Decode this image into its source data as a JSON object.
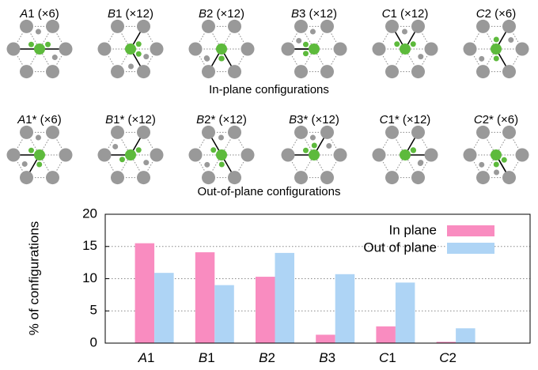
{
  "diagrams": {
    "in_plane": {
      "labels": [
        "A1 (×6)",
        "B1 (×12)",
        "B2 (×12)",
        "B3 (×12)",
        "C1 (×12)",
        "C2 (×6)"
      ],
      "caption": "In-plane configurations"
    },
    "out_of_plane": {
      "labels": [
        "A1* (×6)",
        "B1* (×12)",
        "B2* (×12)",
        "B3* (×12)",
        "C1* (×12)",
        "C2* (×6)"
      ],
      "caption": "Out-of-plane configurations"
    }
  },
  "chart_data": {
    "type": "bar",
    "y_label": "% of configurations",
    "categories": [
      "A1",
      "B1",
      "B2",
      "B3",
      "C1",
      "C2"
    ],
    "series": [
      {
        "name": "In plane",
        "color": "#f98cc0",
        "values": [
          15.5,
          14.1,
          10.3,
          1.3,
          2.6,
          0.2
        ]
      },
      {
        "name": "Out of plane",
        "color": "#aed4f5",
        "values": [
          10.9,
          9.0,
          14.0,
          10.7,
          9.4,
          2.3
        ]
      }
    ],
    "ylim": [
      0,
      20
    ],
    "yticks": [
      0,
      5,
      10,
      15,
      20
    ],
    "grid": true,
    "legend": "top-right"
  }
}
